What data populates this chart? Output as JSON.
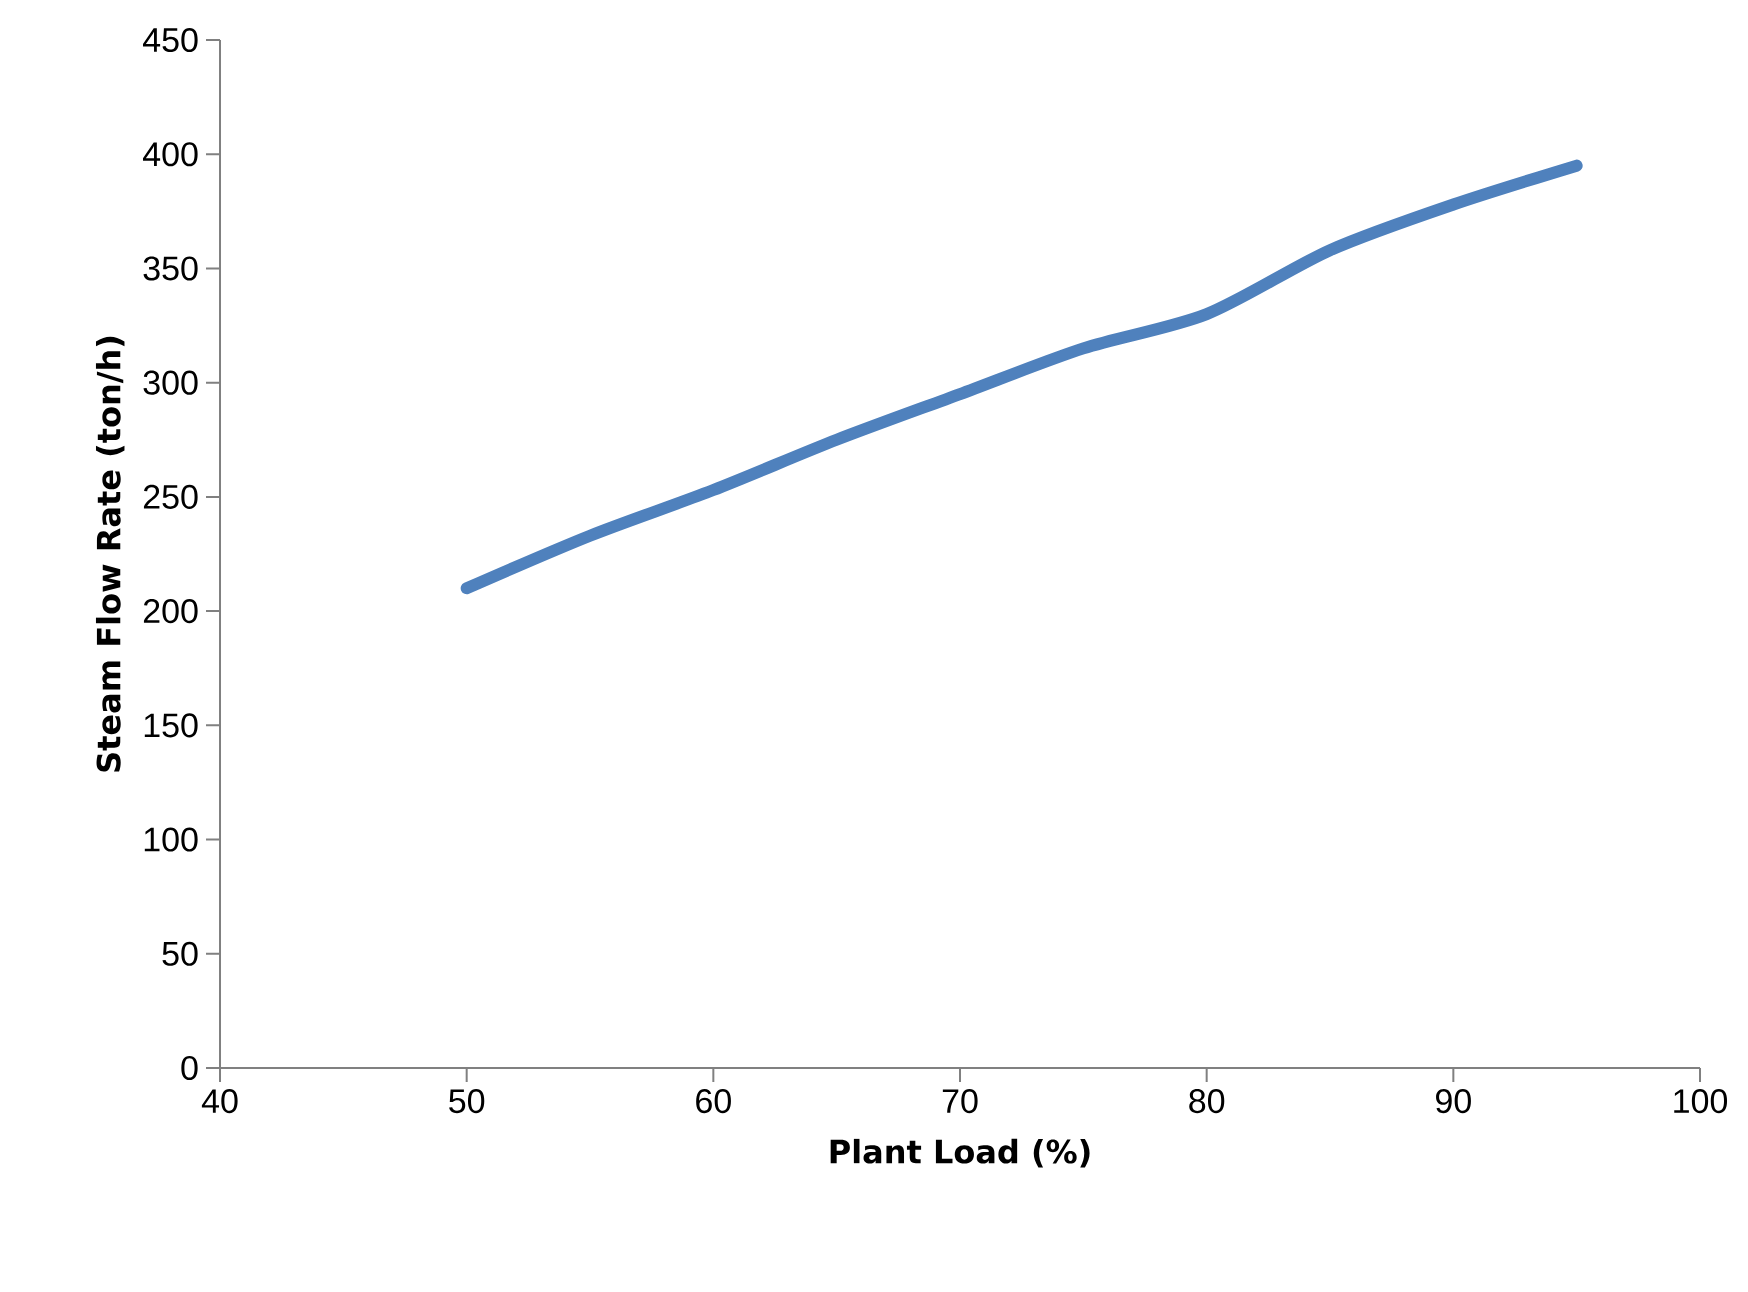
{
  "chart_data": {
    "type": "line",
    "xlabel": "Plant Load (%)",
    "ylabel": "Steam Flow Rate (ton/h)",
    "x": [
      50,
      55,
      60,
      65,
      70,
      75,
      80,
      85,
      90,
      95
    ],
    "series": [
      {
        "color": "#4f81bd",
        "values": [
          210,
          233,
          253,
          275,
          295,
          315,
          330,
          358,
          378,
          395
        ]
      }
    ],
    "xlim": [
      40,
      100
    ],
    "ylim": [
      0,
      450
    ],
    "xticks": [
      40,
      50,
      60,
      70,
      80,
      90,
      100
    ],
    "yticks": [
      0,
      50,
      100,
      150,
      200,
      250,
      300,
      350,
      400,
      450
    ],
    "grid": false,
    "marker": "none",
    "line_style": "solid"
  }
}
